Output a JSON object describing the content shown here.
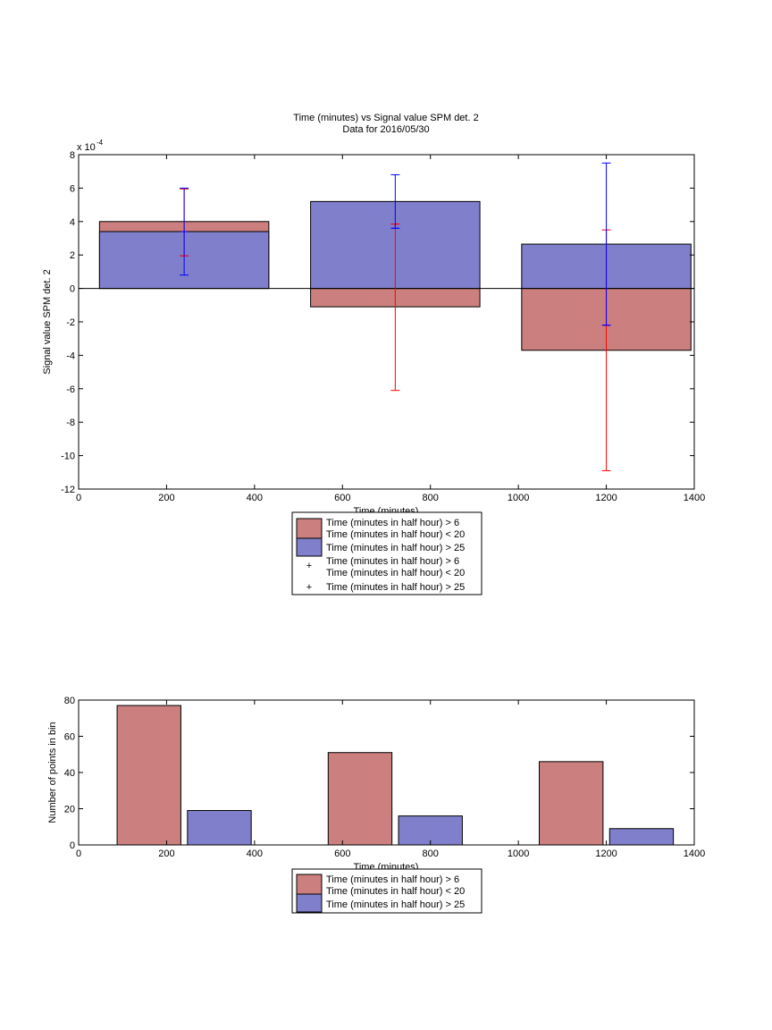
{
  "colors": {
    "red_bar": "#cc7f7f",
    "blue_bar": "#7f7fcc",
    "red_err": "#ff0000",
    "blue_err": "#0000ff"
  },
  "chart_data": [
    {
      "type": "bar",
      "title": "Time (minutes) vs Signal value SPM det. 2",
      "subtitle": "Data for 2016/05/30",
      "xlabel": "Time (minutes)",
      "ylabel": "Signal value SPM det. 2",
      "y_exponent_label": "x 10",
      "y_exponent_power": "-4",
      "xlim": [
        0,
        1400
      ],
      "ylim": [
        -12,
        8
      ],
      "y_scale": 0.0001,
      "xticks": [
        0,
        200,
        400,
        600,
        800,
        1000,
        1200,
        1400
      ],
      "yticks": [
        -12,
        -10,
        -8,
        -6,
        -4,
        -2,
        0,
        2,
        4,
        6,
        8
      ],
      "bar_width": 385,
      "series": [
        {
          "name": "Time (minutes in half hour) > 6 Time (minutes in half hour) < 20",
          "legend_lines": [
            "Time (minutes in half hour) > 6",
            "Time (minutes in half hour) < 20"
          ],
          "x": [
            240,
            720,
            1200
          ],
          "values": [
            4.0,
            -1.1,
            -3.7
          ],
          "color": "#cc7f7f"
        },
        {
          "name": "Time (minutes in half hour) > 25",
          "legend_lines": [
            "Time (minutes in half hour) > 25"
          ],
          "x": [
            240,
            720,
            1200
          ],
          "values": [
            3.4,
            5.2,
            2.65
          ],
          "color": "#7f7fcc"
        }
      ],
      "errorbars": [
        {
          "name": "Time (minutes in half hour) > 6 Time (minutes in half hour) < 20",
          "legend_lines": [
            "Time (minutes in half hour) > 6",
            "Time (minutes in half hour) < 20"
          ],
          "x": [
            240,
            720,
            1200
          ],
          "y": [
            1.95,
            3.85,
            -2.2
          ],
          "lower": [
            1.95,
            -6.1,
            -10.9
          ],
          "upper": [
            5.95,
            3.85,
            3.5
          ],
          "color": "#ff0000"
        },
        {
          "name": "Time (minutes in half hour) > 25",
          "legend_lines": [
            "Time (minutes in half hour) > 25"
          ],
          "x": [
            240,
            720,
            1200
          ],
          "y": [
            3.4,
            3.6,
            -2.2
          ],
          "lower": [
            0.8,
            3.6,
            -2.2
          ],
          "upper": [
            6.0,
            6.8,
            7.5
          ],
          "color": "#0000ff"
        }
      ],
      "legend_placement": "below"
    },
    {
      "type": "bar",
      "xlabel": "Time (minutes)",
      "ylabel": "Number of points in bin",
      "xlim": [
        0,
        1400
      ],
      "ylim": [
        0,
        80
      ],
      "xticks": [
        0,
        200,
        400,
        600,
        800,
        1000,
        1200,
        1400
      ],
      "yticks": [
        0,
        20,
        40,
        60,
        80
      ],
      "bar_width": 145,
      "series": [
        {
          "name": "Time (minutes in half hour) > 6 Time (minutes in half hour) < 20",
          "legend_lines": [
            "Time (minutes in half hour) > 6",
            "Time (minutes in half hour) < 20"
          ],
          "x": [
            160,
            640,
            1120
          ],
          "values": [
            77,
            51,
            46
          ],
          "color": "#cc7f7f"
        },
        {
          "name": "Time (minutes in half hour) > 25",
          "legend_lines": [
            "Time (minutes in half hour) > 25"
          ],
          "x": [
            320,
            800,
            1280
          ],
          "values": [
            19,
            16,
            9
          ],
          "color": "#7f7fcc"
        }
      ],
      "legend_placement": "below"
    }
  ]
}
